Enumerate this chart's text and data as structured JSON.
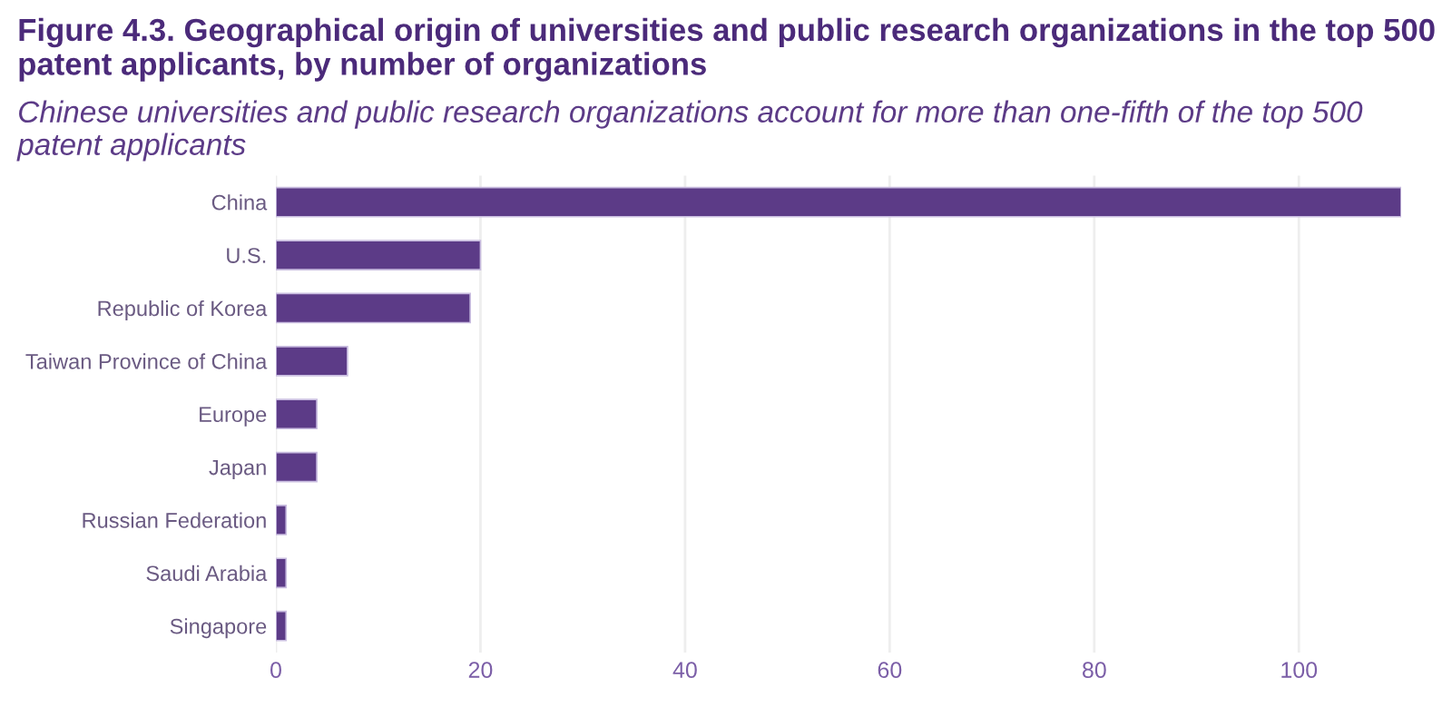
{
  "chart_data": {
    "type": "bar",
    "orientation": "horizontal",
    "title": "Figure 4.3. Geographical origin of universities and public research organizations in the top 500 patent applicants, by number of organizations",
    "subtitle": "Chinese universities and public research organizations account for more than one-fifth of the top 500 patent applicants",
    "categories": [
      "China",
      "U.S.",
      "Republic of Korea",
      "Taiwan Province of China",
      "Europe",
      "Japan",
      "Russian Federation",
      "Saudi Arabia",
      "Singapore"
    ],
    "values": [
      110,
      20,
      19,
      7,
      4,
      4,
      1,
      1,
      1
    ],
    "color": "#5c3b87",
    "xlim": [
      0,
      110
    ],
    "xticks": [
      0,
      20,
      40,
      60,
      80,
      100
    ],
    "grid": "x",
    "legend": false
  }
}
